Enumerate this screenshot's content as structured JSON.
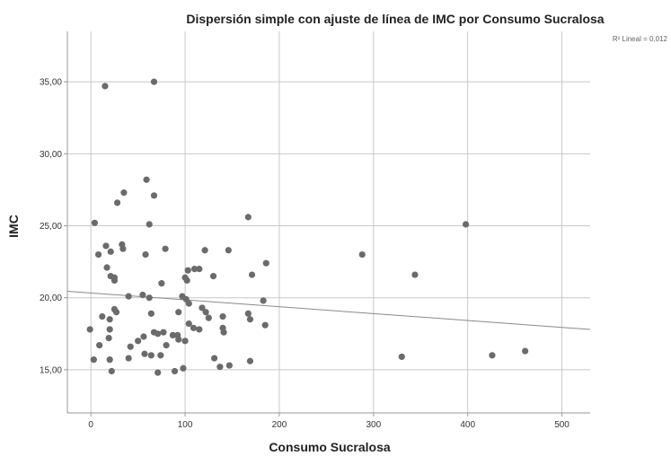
{
  "chart_data": {
    "type": "scatter",
    "title": "Dispersión simple con ajuste de línea de IMC por Consumo Sucralosa",
    "xlabel": "Consumo Sucralosa",
    "ylabel": "IMC",
    "xlim": [
      -25,
      530
    ],
    "ylim": [
      12,
      38.5
    ],
    "x_ticks": [
      0,
      100,
      200,
      300,
      400,
      500
    ],
    "x_tick_labels": [
      "0",
      "100",
      "200",
      "300",
      "400",
      "500"
    ],
    "y_ticks": [
      15,
      20,
      25,
      30,
      35
    ],
    "y_tick_labels": [
      "15,00",
      "20,00",
      "25,00",
      "30,00",
      "35,00"
    ],
    "grid": true,
    "colors": {
      "point": "#6b6b6b",
      "grid": "#c8c8c8",
      "fit_line": "#8a8a8a",
      "axis": "#9a9a9a"
    },
    "fit_line": {
      "x": [
        -25,
        530
      ],
      "y": [
        20.45,
        17.8
      ]
    },
    "r2_label": "R² Lineal = 0,012",
    "points": [
      {
        "x": 15,
        "y": 34.7
      },
      {
        "x": 67,
        "y": 35.0
      },
      {
        "x": 59,
        "y": 28.2
      },
      {
        "x": 35,
        "y": 27.3
      },
      {
        "x": 67,
        "y": 27.1
      },
      {
        "x": 28,
        "y": 26.6
      },
      {
        "x": 4,
        "y": 25.2
      },
      {
        "x": 62,
        "y": 25.1
      },
      {
        "x": 167,
        "y": 25.6
      },
      {
        "x": 398,
        "y": 25.1
      },
      {
        "x": 16,
        "y": 23.6
      },
      {
        "x": 33,
        "y": 23.7
      },
      {
        "x": 34,
        "y": 23.4
      },
      {
        "x": 79,
        "y": 23.4
      },
      {
        "x": 121,
        "y": 23.3
      },
      {
        "x": 146,
        "y": 23.3
      },
      {
        "x": 8,
        "y": 23.0
      },
      {
        "x": 21,
        "y": 23.2
      },
      {
        "x": 58,
        "y": 23.0
      },
      {
        "x": 288,
        "y": 23.0
      },
      {
        "x": 186,
        "y": 22.4
      },
      {
        "x": 17,
        "y": 22.1
      },
      {
        "x": 103,
        "y": 21.9
      },
      {
        "x": 110,
        "y": 22.0
      },
      {
        "x": 115,
        "y": 22.0
      },
      {
        "x": 21,
        "y": 21.5
      },
      {
        "x": 25,
        "y": 21.2
      },
      {
        "x": 25,
        "y": 21.4
      },
      {
        "x": 100,
        "y": 21.4
      },
      {
        "x": 102,
        "y": 21.2
      },
      {
        "x": 130,
        "y": 21.5
      },
      {
        "x": 171,
        "y": 21.6
      },
      {
        "x": 344,
        "y": 21.6
      },
      {
        "x": 75,
        "y": 21.0
      },
      {
        "x": 40,
        "y": 20.1
      },
      {
        "x": 55,
        "y": 20.2
      },
      {
        "x": 62,
        "y": 20.0
      },
      {
        "x": 97,
        "y": 20.1
      },
      {
        "x": 101,
        "y": 19.9
      },
      {
        "x": 104,
        "y": 19.6
      },
      {
        "x": 183,
        "y": 19.8
      },
      {
        "x": 25,
        "y": 19.2
      },
      {
        "x": 27,
        "y": 19.0
      },
      {
        "x": 118,
        "y": 19.3
      },
      {
        "x": 122,
        "y": 19.0
      },
      {
        "x": 93,
        "y": 19.0
      },
      {
        "x": 64,
        "y": 18.9
      },
      {
        "x": 12,
        "y": 18.7
      },
      {
        "x": 20,
        "y": 18.5
      },
      {
        "x": 125,
        "y": 18.6
      },
      {
        "x": 140,
        "y": 18.7
      },
      {
        "x": 167,
        "y": 18.9
      },
      {
        "x": 169,
        "y": 18.5
      },
      {
        "x": 104,
        "y": 18.2
      },
      {
        "x": 109,
        "y": 17.9
      },
      {
        "x": 115,
        "y": 17.8
      },
      {
        "x": 140,
        "y": 17.9
      },
      {
        "x": 141,
        "y": 17.6
      },
      {
        "x": 185,
        "y": 18.1
      },
      {
        "x": 20,
        "y": 17.8
      },
      {
        "x": -1,
        "y": 17.8
      },
      {
        "x": 67,
        "y": 17.6
      },
      {
        "x": 71,
        "y": 17.5
      },
      {
        "x": 77,
        "y": 17.6
      },
      {
        "x": 87,
        "y": 17.4
      },
      {
        "x": 92,
        "y": 17.4
      },
      {
        "x": 93,
        "y": 17.1
      },
      {
        "x": 56,
        "y": 17.3
      },
      {
        "x": 50,
        "y": 17.0
      },
      {
        "x": 100,
        "y": 17.0
      },
      {
        "x": 19,
        "y": 17.2
      },
      {
        "x": 9,
        "y": 16.7
      },
      {
        "x": 42,
        "y": 16.6
      },
      {
        "x": 80,
        "y": 16.7
      },
      {
        "x": 57,
        "y": 16.1
      },
      {
        "x": 64,
        "y": 16.0
      },
      {
        "x": 74,
        "y": 16.0
      },
      {
        "x": 40,
        "y": 15.8
      },
      {
        "x": 3,
        "y": 15.7
      },
      {
        "x": 20,
        "y": 15.7
      },
      {
        "x": 131,
        "y": 15.8
      },
      {
        "x": 169,
        "y": 15.6
      },
      {
        "x": 330,
        "y": 15.9
      },
      {
        "x": 426,
        "y": 16.0
      },
      {
        "x": 461,
        "y": 16.3
      },
      {
        "x": 22,
        "y": 14.9
      },
      {
        "x": 71,
        "y": 14.8
      },
      {
        "x": 89,
        "y": 14.9
      },
      {
        "x": 98,
        "y": 15.1
      },
      {
        "x": 137,
        "y": 15.2
      },
      {
        "x": 147,
        "y": 15.3
      }
    ]
  }
}
